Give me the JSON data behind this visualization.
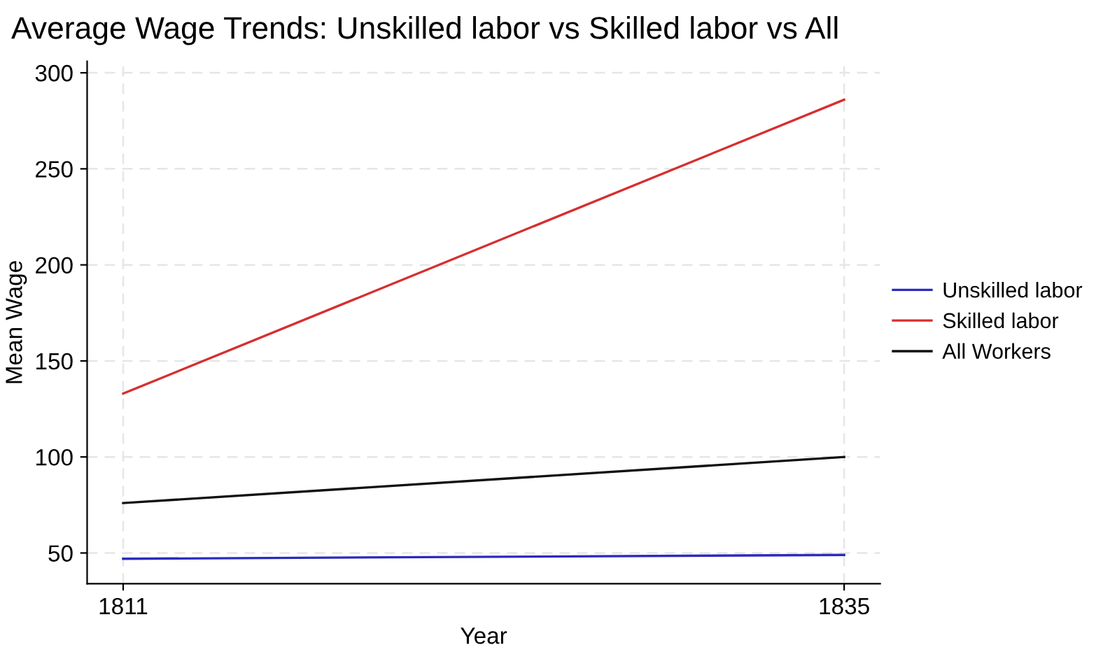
{
  "chart_data": {
    "type": "line",
    "title": "Average Wage Trends: Unskilled labor vs Skilled labor vs All",
    "xlabel": "Year",
    "ylabel": "Mean Wage",
    "x": [
      1811,
      1835
    ],
    "series": [
      {
        "name": "Unskilled labor",
        "color": "#2b2bbf",
        "values": [
          47,
          49
        ]
      },
      {
        "name": "Skilled labor",
        "color": "#d62f2f",
        "values": [
          133,
          286
        ]
      },
      {
        "name": "All Workers",
        "color": "#111111",
        "values": [
          76,
          100
        ]
      }
    ],
    "xlim": [
      1809.8,
      1836.2
    ],
    "ylim": [
      34,
      306
    ],
    "xticks": [
      1811,
      1835
    ],
    "yticks": [
      50,
      100,
      150,
      200,
      250,
      300
    ],
    "grid": true,
    "legend": "right",
    "marker": "none",
    "line_style": "solid"
  }
}
